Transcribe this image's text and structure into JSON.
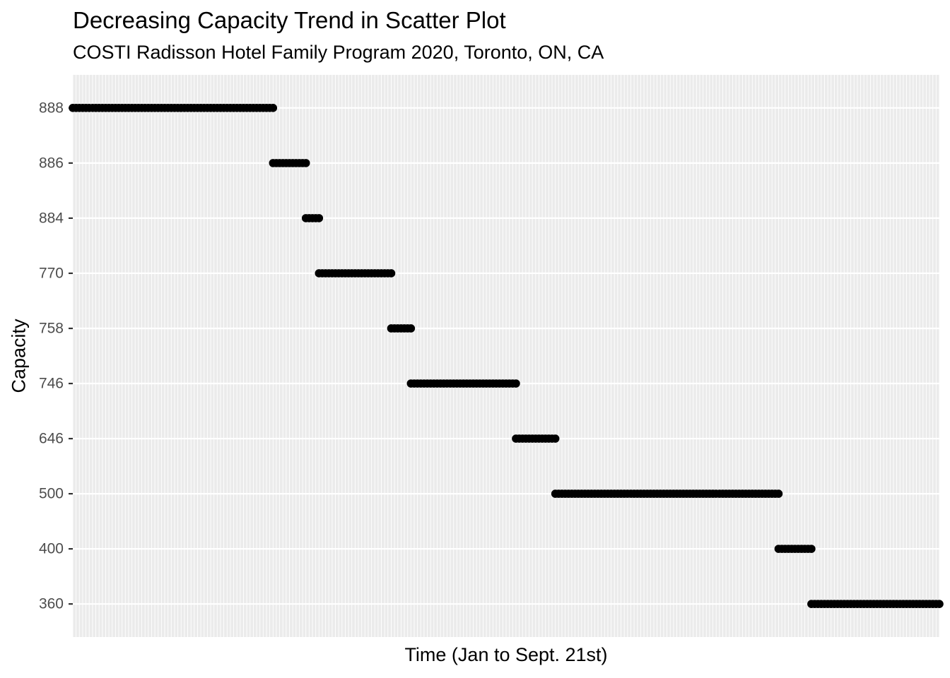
{
  "chart_data": {
    "type": "scatter",
    "title": "Decreasing Capacity Trend in Scatter Plot",
    "subtitle": "COSTI Radisson Hotel Family Program 2020, Toronto, ON, CA",
    "xlabel": "Time (Jan to Sept. 21st)",
    "ylabel": "Capacity",
    "x_axis": {
      "kind": "date",
      "range": [
        "2020-01-01",
        "2020-09-21"
      ],
      "tick_labels_shown": false
    },
    "y_axis": {
      "kind": "discrete",
      "categories": [
        "360",
        "400",
        "500",
        "646",
        "746",
        "758",
        "770",
        "884",
        "886",
        "888"
      ]
    },
    "grid": true,
    "legend": "none",
    "point_color": "#000000",
    "background_color": "#ebebeb",
    "grid_color": "#ffffff",
    "series": [
      {
        "y": "888",
        "x_start": "2020-01-01",
        "x_end": "2020-03-02"
      },
      {
        "y": "886",
        "x_start": "2020-03-02",
        "x_end": "2020-03-12"
      },
      {
        "y": "884",
        "x_start": "2020-03-12",
        "x_end": "2020-03-16"
      },
      {
        "y": "770",
        "x_start": "2020-03-16",
        "x_end": "2020-04-07"
      },
      {
        "y": "758",
        "x_start": "2020-04-07",
        "x_end": "2020-04-13"
      },
      {
        "y": "746",
        "x_start": "2020-04-13",
        "x_end": "2020-05-15"
      },
      {
        "y": "646",
        "x_start": "2020-05-15",
        "x_end": "2020-05-27"
      },
      {
        "y": "500",
        "x_start": "2020-05-27",
        "x_end": "2020-08-03"
      },
      {
        "y": "400",
        "x_start": "2020-08-03",
        "x_end": "2020-08-13"
      },
      {
        "y": "360",
        "x_start": "2020-08-13",
        "x_end": "2020-09-21"
      }
    ]
  }
}
